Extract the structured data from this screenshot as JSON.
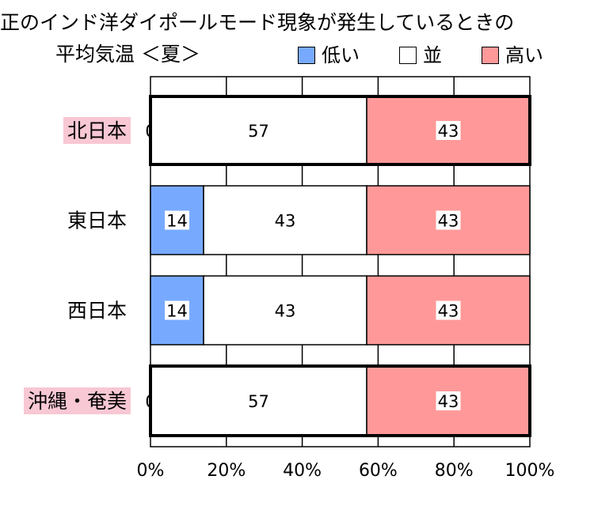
{
  "chart_data": {
    "type": "bar",
    "orientation": "horizontal",
    "stacked": true,
    "title_line1": "正のインド洋ダイポールモード現象が発生しているときの",
    "title_line2": "平均気温 ＜夏＞",
    "categories": [
      "北日本",
      "東日本",
      "西日本",
      "沖縄・奄美"
    ],
    "highlighted_categories": [
      "北日本",
      "沖縄・奄美"
    ],
    "series": [
      {
        "name": "低い",
        "color": "#77aaff",
        "values": [
          0,
          14,
          14,
          0
        ]
      },
      {
        "name": "並",
        "color": "#ffffff",
        "values": [
          57,
          43,
          43,
          57
        ]
      },
      {
        "name": "高い",
        "color": "#ff9999",
        "values": [
          43,
          43,
          43,
          43
        ]
      }
    ],
    "xlim": [
      0,
      100
    ],
    "xticks": [
      "0%",
      "20%",
      "40%",
      "60%",
      "80%",
      "100%"
    ],
    "grid": true,
    "legend_position": "top-right",
    "highlight_label_bg": "#f8c8d4"
  }
}
